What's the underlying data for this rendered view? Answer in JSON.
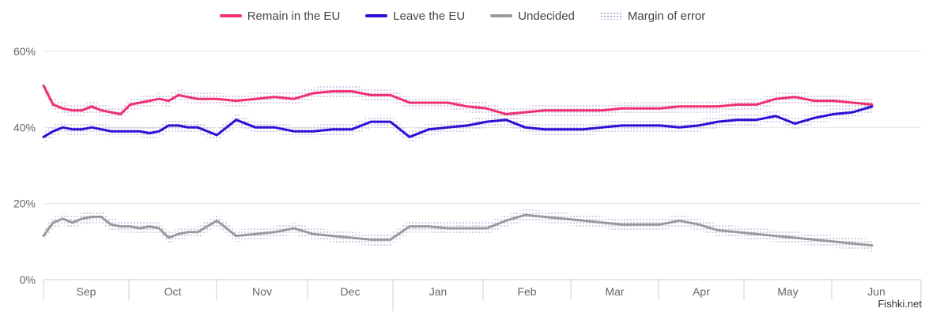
{
  "legend": {
    "remain": "Remain in the EU",
    "leave": "Leave the EU",
    "undecided": "Undecided",
    "moe": "Margin of error"
  },
  "watermark": "Fishki.net",
  "colors": {
    "remain": "#f0306e",
    "leave": "#2a0fd6",
    "undecided": "#9a9a9a",
    "moe": "#b8a7d6",
    "grid": "#e6e6e6",
    "axis_text": "#666666"
  },
  "chart_data": {
    "type": "line",
    "x_unit": "weeks since start of September",
    "x_axis_ticks": [
      "Sep",
      "Oct",
      "Nov",
      "Dec",
      "Jan",
      "Feb",
      "Mar",
      "Apr",
      "May",
      "Jun"
    ],
    "y_ticks": [
      "0%",
      "20%",
      "40%",
      "60%"
    ],
    "ylim": [
      0,
      60
    ],
    "grid": true,
    "legend_position": "top-center",
    "series": [
      {
        "name": "Remain in the EU",
        "color": "#f0306e",
        "x": [
          0,
          0.5,
          1,
          1.5,
          2,
          2.5,
          3,
          3.5,
          4,
          4.5,
          5,
          5.5,
          6,
          6.5,
          7,
          7.5,
          8,
          9,
          10,
          11,
          12,
          13,
          14,
          15,
          16,
          17,
          18,
          19,
          20,
          21,
          22,
          23,
          24,
          25,
          26,
          27,
          28,
          29,
          30,
          31,
          32,
          33,
          34,
          35,
          36,
          37,
          38,
          39,
          40,
          41,
          42,
          43
        ],
        "values": [
          51,
          46,
          45,
          44.5,
          44.5,
          45.5,
          44.5,
          44,
          43.5,
          46,
          46.5,
          47,
          47.5,
          47,
          48.5,
          48,
          47.5,
          47.5,
          47,
          47.5,
          48,
          47.5,
          49,
          49.5,
          49.5,
          48.5,
          48.5,
          46.5,
          46.5,
          46.5,
          45.5,
          45,
          43.5,
          44,
          44.5,
          44.5,
          44.5,
          44.5,
          45,
          45,
          45,
          45.5,
          45.5,
          45.5,
          46,
          46,
          47.5,
          48,
          47,
          47,
          46.5,
          46
        ]
      },
      {
        "name": "Leave the EU",
        "color": "#2a0fd6",
        "x": [
          0,
          0.5,
          1,
          1.5,
          2,
          2.5,
          3,
          3.5,
          4,
          4.5,
          5,
          5.5,
          6,
          6.5,
          7,
          7.5,
          8,
          9,
          10,
          11,
          12,
          13,
          14,
          15,
          16,
          17,
          18,
          19,
          20,
          21,
          22,
          23,
          24,
          25,
          26,
          27,
          28,
          29,
          30,
          31,
          32,
          33,
          34,
          35,
          36,
          37,
          38,
          39,
          40,
          41,
          42,
          43
        ],
        "values": [
          37.5,
          39,
          40,
          39.5,
          39.5,
          40,
          39.5,
          39,
          39,
          39,
          39,
          38.5,
          39,
          40.5,
          40.5,
          40,
          40,
          38,
          42,
          40,
          40,
          39,
          39,
          39.5,
          39.5,
          41.5,
          41.5,
          37.5,
          39.5,
          40,
          40.5,
          41.5,
          42,
          40,
          39.5,
          39.5,
          39.5,
          40,
          40.5,
          40.5,
          40.5,
          40,
          40.5,
          41.5,
          42,
          42,
          43,
          41,
          42.5,
          43.5,
          44,
          45.5
        ]
      },
      {
        "name": "Undecided",
        "color": "#9a9a9a",
        "x": [
          0,
          0.5,
          1,
          1.5,
          2,
          2.5,
          3,
          3.5,
          4,
          4.5,
          5,
          5.5,
          6,
          6.5,
          7,
          7.5,
          8,
          9,
          10,
          11,
          12,
          13,
          14,
          15,
          16,
          17,
          18,
          19,
          20,
          21,
          22,
          23,
          24,
          25,
          26,
          27,
          28,
          29,
          30,
          31,
          32,
          33,
          34,
          35,
          36,
          37,
          38,
          39,
          40,
          41,
          42,
          43
        ],
        "values": [
          11.5,
          15,
          16,
          15,
          16,
          16.5,
          16.5,
          14.5,
          14,
          14,
          13.5,
          14,
          13.5,
          11,
          12,
          12.5,
          12.5,
          15.5,
          11.5,
          12,
          12.5,
          13.5,
          12,
          11.5,
          11,
          10.5,
          10.5,
          14,
          14,
          13.5,
          13.5,
          13.5,
          15.5,
          17,
          16.5,
          16,
          15.5,
          15,
          14.5,
          14.5,
          14.5,
          15.5,
          14.5,
          13,
          12.5,
          12,
          11.5,
          11,
          10.5,
          10,
          9.5,
          9
        ]
      }
    ]
  }
}
